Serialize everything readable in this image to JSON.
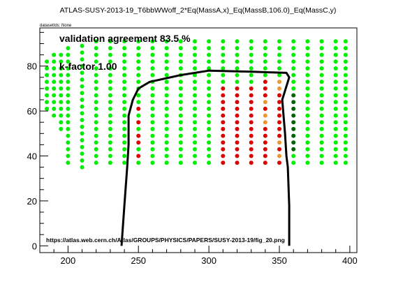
{
  "chart_data": {
    "type": "scatter",
    "title": "ATLAS-SUSY-2013-19_T6bbWWoff_2*Eq(MassA,x)_Eq(MassB,106.0)_Eq(MassC,y)",
    "subtitle": "datasetIds: None",
    "xlabel": "",
    "ylabel": "",
    "xlim": [
      180,
      405
    ],
    "ylim": [
      -3,
      97
    ],
    "x_ticks": [
      200,
      250,
      300,
      350,
      400
    ],
    "y_ticks": [
      0,
      20,
      40,
      60,
      80
    ],
    "grid": false,
    "annotations": {
      "agreement": "validation agreement 83.5 %",
      "kfactor": "k-factor 1.00",
      "url": "https://atlas.web.cern.ch/Atlas/GROUPS/PHYSICS/PAPERS/SUSY-2013-19/fig_20.png"
    },
    "colors": {
      "green": "#00ee00",
      "red": "#dd0000",
      "orange": "#f0952a",
      "darkgreen": "#006400",
      "line": "#000000"
    },
    "columns": [
      {
        "x": 185,
        "y0": 61,
        "y1": 82,
        "step": 3,
        "color": "green"
      },
      {
        "x": 190,
        "y0": 58,
        "y1": 85,
        "step": 3,
        "color": "green"
      },
      {
        "x": 195,
        "y0": 52,
        "y1": 87,
        "step": 3,
        "color": "green"
      },
      {
        "x": 200,
        "y0": 37,
        "y1": 90,
        "step": 3,
        "color": "green"
      },
      {
        "x": 210,
        "y0": 35,
        "y1": 90,
        "step": 3,
        "color": "green"
      },
      {
        "x": 220,
        "y0": 37,
        "y1": 92,
        "step": 3,
        "color": "green"
      },
      {
        "x": 230,
        "y0": 37,
        "y1": 92,
        "step": 3,
        "color": "green"
      },
      {
        "x": 240,
        "y0": 37,
        "y1": 92,
        "step": 3,
        "color": "green"
      },
      {
        "x": 250,
        "y0": 37,
        "y1": 92,
        "step": 3,
        "color": "green"
      },
      {
        "x": 260,
        "y0": 37,
        "y1": 92,
        "step": 3,
        "color": "green"
      },
      {
        "x": 270,
        "y0": 37,
        "y1": 92,
        "step": 3,
        "color": "green"
      },
      {
        "x": 280,
        "y0": 37,
        "y1": 92,
        "step": 3,
        "color": "green"
      },
      {
        "x": 290,
        "y0": 37,
        "y1": 92,
        "step": 3,
        "color": "green"
      },
      {
        "x": 300,
        "y0": 37,
        "y1": 92,
        "step": 3,
        "color": "green"
      },
      {
        "x": 310,
        "y0": 37,
        "y1": 92,
        "step": 3,
        "color": "green"
      },
      {
        "x": 320,
        "y0": 37,
        "y1": 92,
        "step": 3,
        "color": "green"
      },
      {
        "x": 330,
        "y0": 37,
        "y1": 92,
        "step": 3,
        "color": "green"
      },
      {
        "x": 340,
        "y0": 37,
        "y1": 92,
        "step": 3,
        "color": "green"
      },
      {
        "x": 350,
        "y0": 37,
        "y1": 92,
        "step": 3,
        "color": "green"
      },
      {
        "x": 360,
        "y0": 37,
        "y1": 92,
        "step": 3,
        "color": "green"
      },
      {
        "x": 370,
        "y0": 37,
        "y1": 92,
        "step": 3,
        "color": "green"
      },
      {
        "x": 380,
        "y0": 37,
        "y1": 92,
        "step": 3,
        "color": "green"
      },
      {
        "x": 390,
        "y0": 37,
        "y1": 92,
        "step": 3,
        "color": "green"
      },
      {
        "x": 397,
        "y0": 37,
        "y1": 92,
        "step": 3,
        "color": "green"
      }
    ],
    "overrides": [
      {
        "x": 250,
        "y": 61,
        "color": "red"
      },
      {
        "x": 250,
        "y": 55,
        "color": "red"
      },
      {
        "x": 250,
        "y": 49,
        "color": "red"
      },
      {
        "x": 250,
        "y": 46,
        "color": "red"
      },
      {
        "x": 250,
        "y": 40,
        "color": "red"
      },
      {
        "x": 310,
        "y": 40,
        "color": "red"
      },
      {
        "x": 310,
        "y": 37,
        "color": "red"
      },
      {
        "x": 310,
        "y": 43,
        "color": "red"
      },
      {
        "x": 310,
        "y": 46,
        "color": "red"
      },
      {
        "x": 310,
        "y": 49,
        "color": "red"
      },
      {
        "x": 310,
        "y": 52,
        "color": "red"
      },
      {
        "x": 310,
        "y": 55,
        "color": "red"
      },
      {
        "x": 310,
        "y": 58,
        "color": "red"
      },
      {
        "x": 310,
        "y": 61,
        "color": "red"
      },
      {
        "x": 310,
        "y": 64,
        "color": "red"
      },
      {
        "x": 310,
        "y": 67,
        "color": "red"
      },
      {
        "x": 310,
        "y": 70,
        "color": "red"
      },
      {
        "x": 320,
        "y": 37,
        "color": "red"
      },
      {
        "x": 320,
        "y": 40,
        "color": "red"
      },
      {
        "x": 320,
        "y": 43,
        "color": "red"
      },
      {
        "x": 320,
        "y": 46,
        "color": "red"
      },
      {
        "x": 320,
        "y": 49,
        "color": "red"
      },
      {
        "x": 320,
        "y": 52,
        "color": "red"
      },
      {
        "x": 320,
        "y": 55,
        "color": "red"
      },
      {
        "x": 320,
        "y": 58,
        "color": "red"
      },
      {
        "x": 320,
        "y": 61,
        "color": "red"
      },
      {
        "x": 320,
        "y": 64,
        "color": "red"
      },
      {
        "x": 320,
        "y": 67,
        "color": "red"
      },
      {
        "x": 320,
        "y": 70,
        "color": "red"
      },
      {
        "x": 330,
        "y": 37,
        "color": "red"
      },
      {
        "x": 330,
        "y": 40,
        "color": "red"
      },
      {
        "x": 330,
        "y": 43,
        "color": "red"
      },
      {
        "x": 330,
        "y": 46,
        "color": "red"
      },
      {
        "x": 330,
        "y": 49,
        "color": "red"
      },
      {
        "x": 330,
        "y": 52,
        "color": "red"
      },
      {
        "x": 330,
        "y": 55,
        "color": "red"
      },
      {
        "x": 330,
        "y": 58,
        "color": "red"
      },
      {
        "x": 330,
        "y": 61,
        "color": "red"
      },
      {
        "x": 330,
        "y": 64,
        "color": "red"
      },
      {
        "x": 330,
        "y": 67,
        "color": "red"
      },
      {
        "x": 330,
        "y": 70,
        "color": "red"
      },
      {
        "x": 340,
        "y": 37,
        "color": "red"
      },
      {
        "x": 340,
        "y": 40,
        "color": "red"
      },
      {
        "x": 340,
        "y": 43,
        "color": "red"
      },
      {
        "x": 340,
        "y": 46,
        "color": "red"
      },
      {
        "x": 340,
        "y": 49,
        "color": "red"
      },
      {
        "x": 340,
        "y": 52,
        "color": "red"
      },
      {
        "x": 340,
        "y": 55,
        "color": "orange"
      },
      {
        "x": 340,
        "y": 58,
        "color": "orange"
      },
      {
        "x": 340,
        "y": 61,
        "color": "red"
      },
      {
        "x": 340,
        "y": 64,
        "color": "orange"
      },
      {
        "x": 340,
        "y": 67,
        "color": "red"
      },
      {
        "x": 340,
        "y": 70,
        "color": "red"
      },
      {
        "x": 340,
        "y": 73,
        "color": "red"
      },
      {
        "x": 350,
        "y": 37,
        "color": "red"
      },
      {
        "x": 350,
        "y": 40,
        "color": "orange"
      },
      {
        "x": 350,
        "y": 43,
        "color": "red"
      },
      {
        "x": 350,
        "y": 46,
        "color": "orange"
      },
      {
        "x": 350,
        "y": 49,
        "color": "red"
      },
      {
        "x": 350,
        "y": 52,
        "color": "red"
      },
      {
        "x": 350,
        "y": 55,
        "color": "red"
      },
      {
        "x": 350,
        "y": 58,
        "color": "red"
      },
      {
        "x": 350,
        "y": 61,
        "color": "red"
      },
      {
        "x": 350,
        "y": 64,
        "color": "red"
      },
      {
        "x": 350,
        "y": 67,
        "color": "red"
      },
      {
        "x": 350,
        "y": 70,
        "color": "orange"
      },
      {
        "x": 350,
        "y": 73,
        "color": "orange"
      },
      {
        "x": 360,
        "y": 43,
        "color": "darkgreen"
      },
      {
        "x": 360,
        "y": 46,
        "color": "darkgreen"
      },
      {
        "x": 360,
        "y": 49,
        "color": "darkgreen"
      },
      {
        "x": 360,
        "y": 52,
        "color": "darkgreen"
      },
      {
        "x": 360,
        "y": 55,
        "color": "darkgreen"
      },
      {
        "x": 360,
        "y": 58,
        "color": "darkgreen"
      },
      {
        "x": 360,
        "y": 61,
        "color": "darkgreen"
      },
      {
        "x": 360,
        "y": 64,
        "color": "darkgreen"
      },
      {
        "x": 360,
        "y": 67,
        "color": "darkgreen"
      }
    ],
    "contour": [
      [
        238,
        0
      ],
      [
        240,
        18
      ],
      [
        242,
        35
      ],
      [
        243,
        45
      ],
      [
        243,
        58
      ],
      [
        246,
        65
      ],
      [
        250,
        70
      ],
      [
        258,
        73
      ],
      [
        280,
        76
      ],
      [
        300,
        78
      ],
      [
        330,
        77.5
      ],
      [
        355,
        77
      ],
      [
        357,
        75
      ],
      [
        352,
        65
      ],
      [
        354,
        50
      ],
      [
        355,
        40
      ],
      [
        356,
        35
      ],
      [
        357,
        18
      ],
      [
        357,
        0
      ]
    ]
  }
}
